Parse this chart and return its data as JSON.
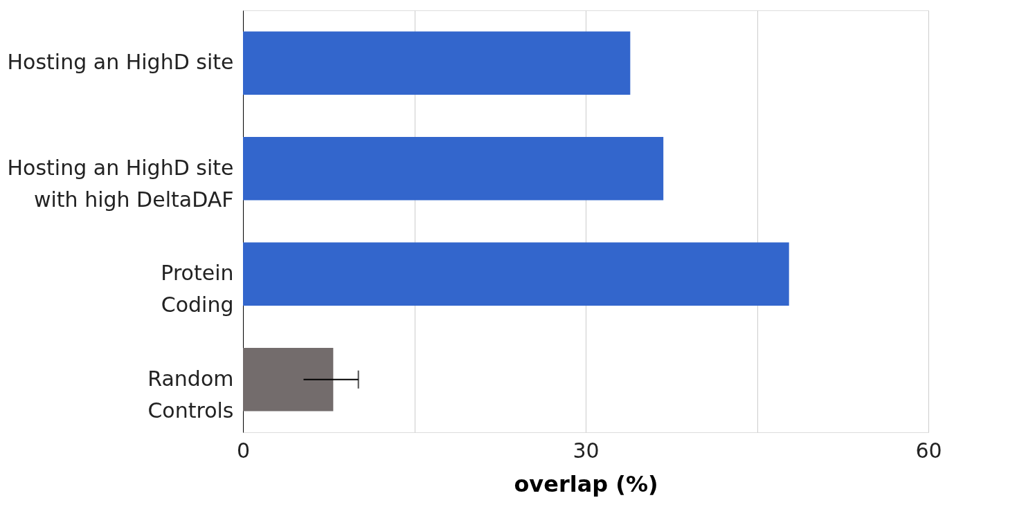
{
  "chart_data": {
    "type": "bar",
    "orientation": "horizontal",
    "xlabel": "overlap (%)",
    "categories": [
      "Hosting an HighD site",
      "Hosting an HighD site\nwith high DeltaDAF",
      "Protein\nCoding",
      "Random\nControls"
    ],
    "values": [
      33.9,
      36.8,
      47.8,
      7.9
    ],
    "colors": [
      "#3366cc",
      "#3366cc",
      "#3366cc",
      "#736c6c"
    ],
    "errors": [
      null,
      null,
      null,
      [
        5.3,
        10.1
      ]
    ],
    "xlim": [
      0,
      60
    ],
    "xticks": [
      0,
      {
        "value": 15,
        "label": null
      },
      30,
      {
        "value": 45,
        "label": null
      },
      60
    ],
    "grid": "x"
  }
}
